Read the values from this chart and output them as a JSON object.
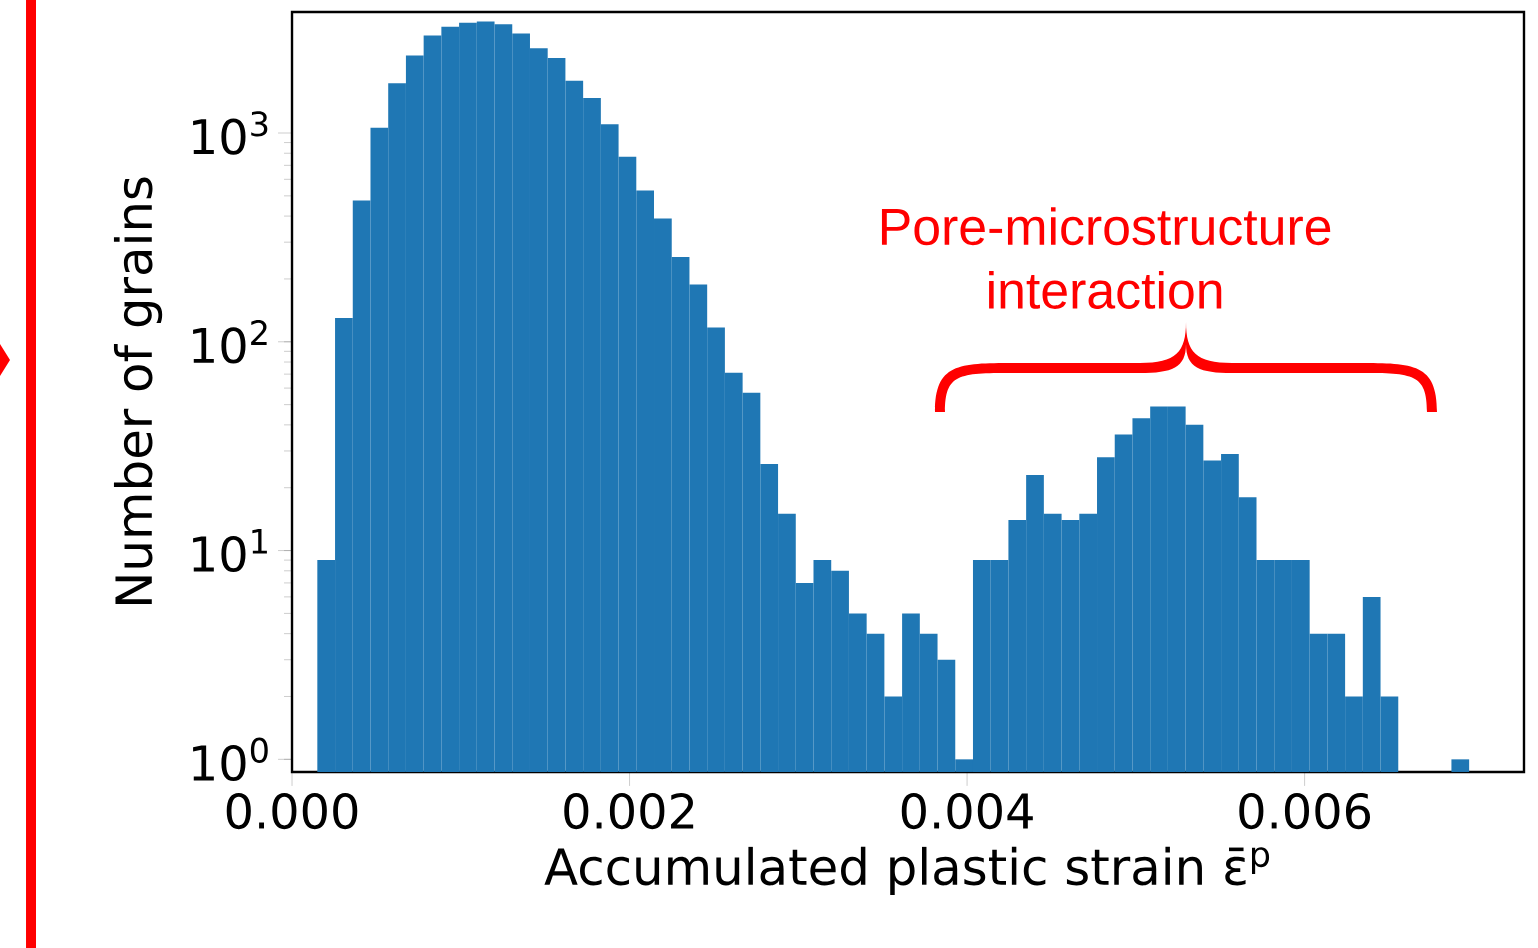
{
  "chart_data": {
    "type": "histogram",
    "xlabel": "Accumulated plastic strain ε̄$^{p}$",
    "ylabel": "Number of grains",
    "annotations": [
      "Pore-microstructure interaction"
    ],
    "bins": [
      0.00015,
      0.000255,
      0.00036,
      0.000465,
      0.00057,
      0.000675,
      0.00078,
      0.000885,
      0.00099,
      0.001095,
      0.0012,
      0.001305,
      0.00141,
      0.001515,
      0.00162,
      0.001725,
      0.00183,
      0.001935,
      0.00204,
      0.002145,
      0.00225,
      0.002355,
      0.00246,
      0.002565,
      0.00267,
      0.002775,
      0.00288,
      0.002985,
      0.00309,
      0.003195,
      0.0033,
      0.003405,
      0.00351,
      0.003615,
      0.00372,
      0.003825,
      0.00393,
      0.004035,
      0.00414,
      0.004245,
      0.00435,
      0.004455,
      0.00456,
      0.004665,
      0.00477,
      0.004875,
      0.00498,
      0.005085,
      0.00519,
      0.005295,
      0.0054,
      0.005505,
      0.00561,
      0.005715,
      0.00582,
      0.005925,
      0.00603,
      0.006135,
      0.00624,
      0.006345,
      0.00645,
      0.006555,
      0.00666,
      0.006765,
      0.00687,
      0.006975
    ],
    "values": [
      9,
      130,
      475,
      1060,
      1730,
      2350,
      2930,
      3230,
      3370,
      3420,
      3320,
      3000,
      2550,
      2290,
      1780,
      1470,
      1100,
      770,
      530,
      390,
      255,
      188,
      117,
      71,
      57,
      26,
      15,
      7,
      9,
      8,
      5,
      4,
      2,
      5,
      4,
      3,
      1,
      9,
      9,
      14,
      23,
      15,
      14,
      15,
      28,
      36,
      43,
      49,
      49,
      40,
      27,
      29,
      18,
      9,
      9,
      9,
      4,
      4,
      2,
      6,
      2,
      null,
      null,
      null,
      1
    ],
    "color": "#1f77b4",
    "log": "y",
    "xlim": [
      0,
      0.0073
    ],
    "ylim": [
      0.87,
      3800
    ],
    "xticks": [
      {
        "value": 0,
        "label": "0.000"
      },
      {
        "value": 0.002,
        "label": "0.002"
      },
      {
        "value": 0.004,
        "label": "0.004"
      },
      {
        "value": 0.006,
        "label": "0.006"
      }
    ],
    "yticks": [
      {
        "value": 1,
        "label": "10$^{0}$"
      },
      {
        "value": 10,
        "label": "10$^{1}$"
      },
      {
        "value": 100,
        "label": "10$^{2}$"
      },
      {
        "value": 1000,
        "label": "10$^{3}$"
      }
    ]
  }
}
